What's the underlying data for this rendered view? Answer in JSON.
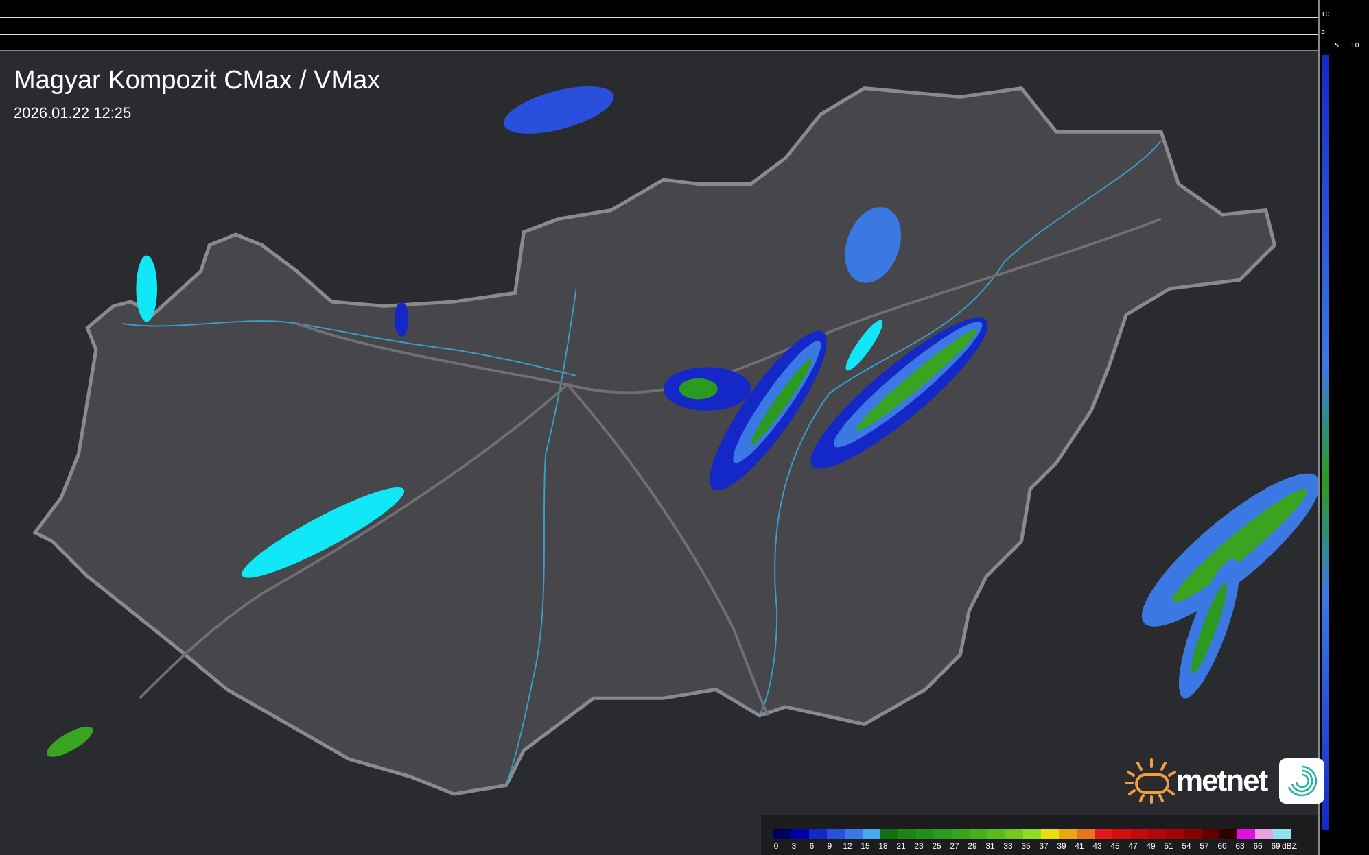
{
  "title": "Magyar Kompozit CMax / VMax",
  "timestamp": "2026.01.22 12:25",
  "profile_axes": {
    "top_right_ticks": [
      "10",
      "5"
    ],
    "bottom_ticks": [
      "5",
      "10"
    ]
  },
  "logo": {
    "brand": "metnet",
    "sun_color": "#f0a040",
    "app_icon": "swirl-icon"
  },
  "legend": {
    "unit": "dBZ",
    "labels": [
      "0",
      "3",
      "6",
      "9",
      "12",
      "15",
      "18",
      "21",
      "23",
      "25",
      "27",
      "29",
      "31",
      "33",
      "35",
      "37",
      "39",
      "41",
      "43",
      "45",
      "47",
      "49",
      "51",
      "54",
      "57",
      "60",
      "63",
      "66",
      "69"
    ],
    "colors": [
      "#00005e",
      "#0000a8",
      "#1428c8",
      "#2850dc",
      "#3c78e4",
      "#46aaea",
      "#187010",
      "#1e8418",
      "#248e1e",
      "#2c9a20",
      "#38a420",
      "#48b020",
      "#58bc20",
      "#70c820",
      "#90dc22",
      "#e8e010",
      "#e8a812",
      "#e87420",
      "#e81818",
      "#d41010",
      "#c40a0a",
      "#b40808",
      "#a40404",
      "#8a0000",
      "#640000",
      "#300000",
      "#e010e0",
      "#e8a4e0",
      "#90e2ea"
    ]
  },
  "colors": {
    "map_bg": "#2a2b2e",
    "country": "#4a4a4e",
    "border": "#8a8a8e",
    "rivers": "#3aa0c8",
    "lakes": "#10e8f8"
  }
}
